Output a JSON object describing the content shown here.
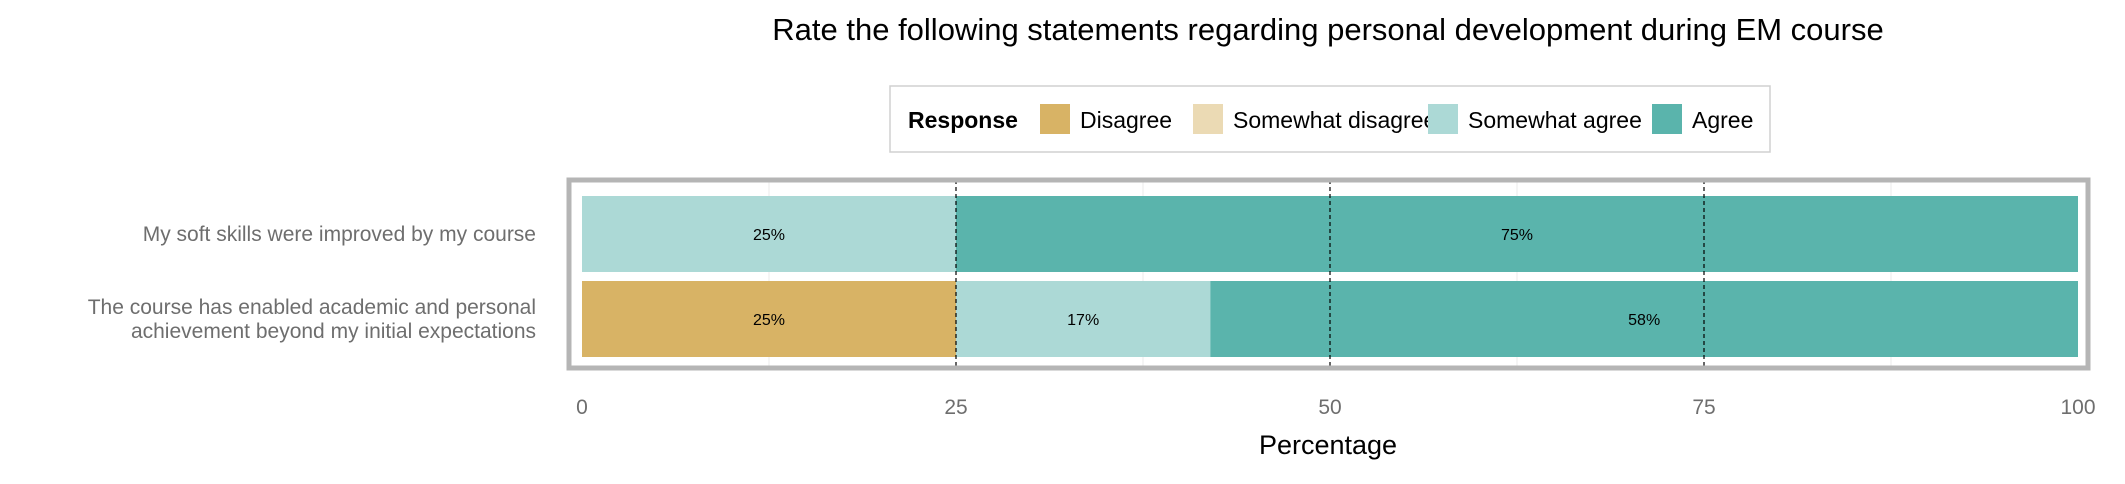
{
  "chart_data": {
    "type": "bar",
    "orientation": "horizontal",
    "stacked": true,
    "title": "Rate the following statements regarding personal development during EM course",
    "xlabel": "Percentage",
    "ylabel": "",
    "xlim": [
      0,
      100
    ],
    "xticks": [
      "0",
      "25",
      "50",
      "75",
      "100"
    ],
    "grid": true,
    "legend": {
      "title": "Response",
      "placement": "top",
      "entries": [
        {
          "name": "Disagree",
          "color": "#d8b365"
        },
        {
          "name": "Somewhat disagree",
          "color": "#ebdab4"
        },
        {
          "name": "Somewhat agree",
          "color": "#acd9d6"
        },
        {
          "name": "Agree",
          "color": "#5ab4ac"
        }
      ]
    },
    "categories": [
      [
        "My soft skills were improved by my course"
      ],
      [
        "The course has enabled academic and personal",
        "achievement beyond my initial expectations"
      ]
    ],
    "series": [
      {
        "name": "Disagree",
        "values": [
          0,
          25
        ],
        "labels": [
          "",
          "25%"
        ]
      },
      {
        "name": "Somewhat disagree",
        "values": [
          0,
          0
        ],
        "labels": [
          "",
          ""
        ]
      },
      {
        "name": "Somewhat agree",
        "values": [
          25,
          17
        ],
        "labels": [
          "25%",
          "17%"
        ]
      },
      {
        "name": "Agree",
        "values": [
          75,
          58
        ],
        "labels": [
          "75%",
          "58%"
        ]
      }
    ]
  }
}
